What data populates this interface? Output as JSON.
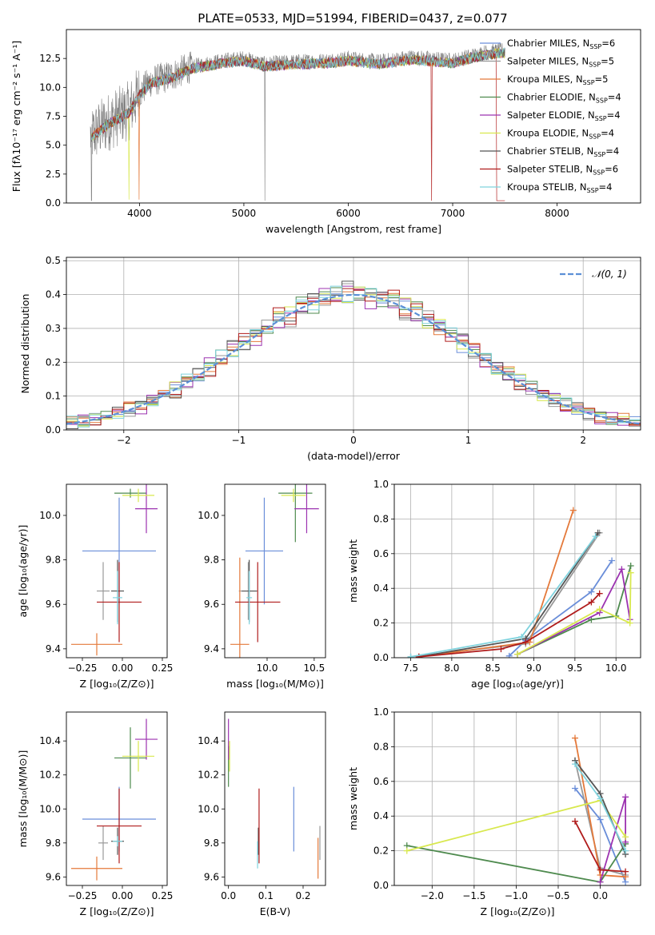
{
  "figure": {
    "title": "PLATE=0533, MJD=51994, FIBERID=0437, z=0.077"
  },
  "model_colors": {
    "Chabrier MILES": "#6a8ed9",
    "Salpeter MILES": "#999999",
    "Kroupa MILES": "#e4793a",
    "Chabrier ELODIE": "#4e8a4e",
    "Salpeter ELODIE": "#9c33b0",
    "Kroupa ELODIE": "#d8e84e",
    "Chabrier STELIB": "#555555",
    "Salpeter STELIB": "#b01c1c",
    "Kroupa STELIB": "#7fd3de"
  },
  "chart_data": [
    {
      "type": "line",
      "id": "spectrum",
      "title": "PLATE=0533, MJD=51994, FIBERID=0437, z=0.077",
      "xlabel": "wavelength [Angstrom, rest frame]",
      "ylabel": "Flux [fλ10⁻¹⁷ erg cm⁻² s⁻¹ A⁻¹]",
      "xlim": [
        3300,
        8800
      ],
      "ylim": [
        0,
        15
      ],
      "xticks": [
        "4000",
        "5000",
        "6000",
        "7000",
        "8000"
      ],
      "yticks": [
        "0.0",
        "2.5",
        "5.0",
        "7.5",
        "10.0",
        "12.5"
      ],
      "grid": false,
      "legend": "upper-right",
      "data_envelope": {
        "x": [
          3530,
          3700,
          3900,
          4000,
          4100,
          4300,
          4500,
          4800,
          5000,
          5200,
          5500,
          5800,
          6000,
          6300,
          6600,
          7000,
          7300,
          7500
        ],
        "y": [
          5.8,
          7.0,
          8.0,
          9.5,
          10.5,
          11.0,
          11.8,
          12.3,
          12.5,
          12.0,
          12.2,
          12.3,
          12.5,
          12.2,
          12.6,
          12.3,
          13.0,
          13.2
        ]
      },
      "series": [
        {
          "name": "Chabrier MILES",
          "nssp": "6"
        },
        {
          "name": "Salpeter MILES",
          "nssp": "5"
        },
        {
          "name": "Kroupa MILES",
          "nssp": "5"
        },
        {
          "name": "Chabrier ELODIE",
          "nssp": "4"
        },
        {
          "name": "Salpeter ELODIE",
          "nssp": "4"
        },
        {
          "name": "Kroupa ELODIE",
          "nssp": "4"
        },
        {
          "name": "Chabrier STELIB",
          "nssp": "4"
        },
        {
          "name": "Salpeter STELIB",
          "nssp": "6"
        },
        {
          "name": "Kroupa STELIB",
          "nssp": "4"
        }
      ]
    },
    {
      "type": "line",
      "id": "residuals",
      "xlabel": "(data-model)/error",
      "ylabel": "Normed distribution",
      "xlim": [
        -2.5,
        2.5
      ],
      "ylim": [
        0,
        0.51
      ],
      "xticks": [
        "−2",
        "−1",
        "0",
        "1",
        "2"
      ],
      "yticks": [
        "0.0",
        "0.1",
        "0.2",
        "0.3",
        "0.4",
        "0.5"
      ],
      "grid": true,
      "legend": "upper-right",
      "legend_label": "𝒩(0, 1)",
      "bin_width": 0.1,
      "series_offsets": [
        [
          0.01,
          -0.01,
          0.02,
          0.0,
          -0.02,
          0.015,
          0.005,
          -0.01,
          0.02,
          0.03
        ],
        [
          -0.01,
          0.02,
          -0.015,
          0.01,
          0.03,
          -0.02,
          0.01,
          0.015,
          -0.005,
          -0.03
        ],
        [
          0.02,
          0.01,
          -0.02,
          -0.015,
          0.01,
          0.025,
          -0.01,
          0.005,
          0.03,
          -0.02
        ],
        [
          0.03,
          -0.02,
          0.01,
          0.025,
          -0.01,
          -0.005,
          0.02,
          -0.015,
          0.01,
          0.005
        ],
        [
          -0.02,
          0.015,
          0.03,
          -0.01,
          0.02,
          0.005,
          -0.03,
          0.02,
          -0.01,
          0.015
        ]
      ]
    },
    {
      "type": "scatter",
      "id": "age-vs-Z",
      "xlabel": "Z [log₁₀(Z/Z⊙)]",
      "ylabel": "age  [log₁₀(age/yr)]",
      "xlim": [
        -0.35,
        0.28
      ],
      "ylim": [
        9.36,
        10.14
      ],
      "xticks": [
        "−0.25",
        "0.00",
        "0.25"
      ],
      "yticks": [
        "9.4",
        "9.6",
        "9.8",
        "10.0"
      ],
      "grid": false,
      "points": [
        {
          "model": "Chabrier MILES",
          "x": -0.02,
          "y": 9.84,
          "xerr": 0.23,
          "yerr": 0.24
        },
        {
          "model": "Salpeter MILES",
          "x": -0.12,
          "y": 9.66,
          "xerr": 0.04,
          "yerr": 0.13
        },
        {
          "model": "Kroupa MILES",
          "x": -0.16,
          "y": 9.42,
          "xerr": 0.16,
          "yerr": 0.05
        },
        {
          "model": "Chabrier ELODIE",
          "x": 0.05,
          "y": 10.1,
          "xerr": 0.1,
          "yerr": 0.02
        },
        {
          "model": "Salpeter ELODIE",
          "x": 0.15,
          "y": 10.03,
          "xerr": 0.07,
          "yerr": 0.11
        },
        {
          "model": "Kroupa ELODIE",
          "x": 0.1,
          "y": 10.09,
          "xerr": 0.1,
          "yerr": 0.03
        },
        {
          "model": "Chabrier STELIB",
          "x": -0.03,
          "y": 9.66,
          "xerr": 0.04,
          "yerr": 0.14
        },
        {
          "model": "Salpeter STELIB",
          "x": -0.02,
          "y": 9.61,
          "xerr": 0.14,
          "yerr": 0.18
        },
        {
          "model": "Kroupa STELIB",
          "x": -0.03,
          "y": 9.63,
          "xerr": 0.03,
          "yerr": 0.12
        }
      ]
    },
    {
      "type": "scatter",
      "id": "age-vs-mass",
      "xlabel": "mass [log₁₀(M/M⊙)]",
      "ylabel": "",
      "xlim": [
        9.55,
        10.62
      ],
      "ylim": [
        9.36,
        10.14
      ],
      "xticks": [
        "10.0",
        "10.5"
      ],
      "yticks": [
        "9.4",
        "9.6",
        "9.8",
        "10.0"
      ],
      "grid": false,
      "points": [
        {
          "model": "Chabrier MILES",
          "x": 9.97,
          "y": 9.84,
          "xerr": 0.2,
          "yerr": 0.24
        },
        {
          "model": "Salpeter MILES",
          "x": 9.8,
          "y": 9.66,
          "xerr": 0.1,
          "yerr": 0.13
        },
        {
          "model": "Kroupa MILES",
          "x": 9.71,
          "y": 9.42,
          "xerr": 0.1,
          "yerr": 0.39
        },
        {
          "model": "Chabrier ELODIE",
          "x": 10.3,
          "y": 10.1,
          "xerr": 0.18,
          "yerr": 0.22
        },
        {
          "model": "Salpeter ELODIE",
          "x": 10.42,
          "y": 10.03,
          "xerr": 0.13,
          "yerr": 0.11
        },
        {
          "model": "Kroupa ELODIE",
          "x": 10.28,
          "y": 10.09,
          "xerr": 0.13,
          "yerr": 0.03
        },
        {
          "model": "Chabrier STELIB",
          "x": 9.81,
          "y": 9.66,
          "xerr": 0.08,
          "yerr": 0.14
        },
        {
          "model": "Salpeter STELIB",
          "x": 9.9,
          "y": 9.61,
          "xerr": 0.24,
          "yerr": 0.18
        },
        {
          "model": "Kroupa STELIB",
          "x": 9.81,
          "y": 9.63,
          "xerr": 0.03,
          "yerr": 0.12
        }
      ]
    },
    {
      "type": "line",
      "id": "massweight-vs-age",
      "xlabel": "age  [log₁₀(age/yr)]",
      "ylabel": "mass weight",
      "xlim": [
        7.3,
        10.3
      ],
      "ylim": [
        0,
        1
      ],
      "xticks": [
        "7.5",
        "8.0",
        "8.5",
        "9.0",
        "9.5",
        "10.0"
      ],
      "yticks": [
        "0.0",
        "0.2",
        "0.4",
        "0.6",
        "0.8",
        "1.0"
      ],
      "grid": true,
      "series": [
        {
          "model": "Chabrier MILES",
          "x": [
            8.7,
            8.9,
            9.7,
            9.95
          ],
          "y": [
            0.01,
            0.1,
            0.38,
            0.56
          ]
        },
        {
          "model": "Salpeter MILES",
          "x": [
            7.5,
            8.9,
            9.8
          ],
          "y": [
            0.005,
            0.08,
            0.72
          ]
        },
        {
          "model": "Kroupa MILES",
          "x": [
            7.6,
            8.95,
            9.48
          ],
          "y": [
            0.005,
            0.09,
            0.85
          ]
        },
        {
          "model": "Chabrier ELODIE",
          "x": [
            8.8,
            9.7,
            10.0,
            10.18
          ],
          "y": [
            0.02,
            0.22,
            0.24,
            0.53
          ]
        },
        {
          "model": "Salpeter ELODIE",
          "x": [
            8.8,
            9.8,
            10.07,
            10.17
          ],
          "y": [
            0.02,
            0.26,
            0.51,
            0.22
          ]
        },
        {
          "model": "Kroupa ELODIE",
          "x": [
            8.8,
            9.8,
            10.17,
            10.18
          ],
          "y": [
            0.02,
            0.28,
            0.2,
            0.49
          ]
        },
        {
          "model": "Chabrier STELIB",
          "x": [
            7.6,
            8.9,
            9.78
          ],
          "y": [
            0.005,
            0.11,
            0.72
          ]
        },
        {
          "model": "Salpeter STELIB",
          "x": [
            7.6,
            8.6,
            8.9,
            9.7,
            9.8
          ],
          "y": [
            0.005,
            0.05,
            0.09,
            0.32,
            0.37
          ]
        },
        {
          "model": "Kroupa STELIB",
          "x": [
            7.5,
            8.85,
            9.75
          ],
          "y": [
            0.005,
            0.12,
            0.7
          ]
        }
      ]
    },
    {
      "type": "scatter",
      "id": "mass-vs-Z",
      "xlabel": "Z [log₁₀(Z/Z⊙)]",
      "ylabel": "mass [log₁₀(M/M⊙)]",
      "xlim": [
        -0.35,
        0.28
      ],
      "ylim": [
        9.55,
        10.57
      ],
      "xticks": [
        "−0.25",
        "0.00",
        "0.25"
      ],
      "yticks": [
        "9.6",
        "9.8",
        "10.0",
        "10.2",
        "10.4"
      ],
      "grid": false,
      "points": [
        {
          "model": "Chabrier MILES",
          "x": -0.02,
          "y": 9.94,
          "xerr": 0.23,
          "yerr": 0.19
        },
        {
          "model": "Salpeter MILES",
          "x": -0.12,
          "y": 9.8,
          "xerr": 0.03,
          "yerr": 0.1
        },
        {
          "model": "Kroupa MILES",
          "x": -0.16,
          "y": 9.65,
          "xerr": 0.16,
          "yerr": 0.07
        },
        {
          "model": "Chabrier ELODIE",
          "x": 0.05,
          "y": 10.3,
          "xerr": 0.1,
          "yerr": 0.18
        },
        {
          "model": "Salpeter ELODIE",
          "x": 0.15,
          "y": 10.41,
          "xerr": 0.07,
          "yerr": 0.12
        },
        {
          "model": "Kroupa ELODIE",
          "x": 0.1,
          "y": 10.31,
          "xerr": 0.1,
          "yerr": 0.09
        },
        {
          "model": "Chabrier STELIB",
          "x": -0.03,
          "y": 9.81,
          "xerr": 0.04,
          "yerr": 0.08
        },
        {
          "model": "Salpeter STELIB",
          "x": -0.02,
          "y": 9.9,
          "xerr": 0.14,
          "yerr": 0.22
        },
        {
          "model": "Kroupa STELIB",
          "x": -0.03,
          "y": 9.81,
          "xerr": 0.03,
          "yerr": 0.03
        }
      ]
    },
    {
      "type": "scatter",
      "id": "mass-vs-EBV",
      "xlabel": "E(B-V)",
      "ylabel": "",
      "xlim": [
        -0.01,
        0.26
      ],
      "ylim": [
        9.55,
        10.57
      ],
      "xticks": [
        "0.0",
        "0.1",
        "0.2"
      ],
      "yticks": [
        "9.6",
        "9.8",
        "10.0",
        "10.2",
        "10.4"
      ],
      "grid": false,
      "points": [
        {
          "model": "Chabrier MILES",
          "x": 0.175,
          "y": 9.94,
          "yerr": 0.19
        },
        {
          "model": "Salpeter MILES",
          "x": 0.245,
          "y": 9.8,
          "yerr": 0.1
        },
        {
          "model": "Kroupa MILES",
          "x": 0.24,
          "y": 9.71,
          "yerr": 0.12
        },
        {
          "model": "Chabrier ELODIE",
          "x": 0.0,
          "y": 10.25,
          "yerr": 0.12
        },
        {
          "model": "Salpeter ELODIE",
          "x": 0.0,
          "y": 10.41,
          "yerr": 0.12
        },
        {
          "model": "Kroupa ELODIE",
          "x": 0.003,
          "y": 10.31,
          "yerr": 0.09
        },
        {
          "model": "Chabrier STELIB",
          "x": 0.08,
          "y": 9.81,
          "yerr": 0.08
        },
        {
          "model": "Salpeter STELIB",
          "x": 0.082,
          "y": 9.9,
          "yerr": 0.22
        },
        {
          "model": "Kroupa STELIB",
          "x": 0.078,
          "y": 9.73,
          "yerr": 0.08
        }
      ]
    },
    {
      "type": "line",
      "id": "massweight-vs-Z",
      "xlabel": "Z [log₁₀(Z/Z⊙)]",
      "ylabel": "mass weight",
      "xlim": [
        -2.45,
        0.48
      ],
      "ylim": [
        0,
        1
      ],
      "xticks": [
        "−2.0",
        "−1.5",
        "−1.0",
        "−0.5",
        "0.0"
      ],
      "yticks": [
        "0.0",
        "0.2",
        "0.4",
        "0.6",
        "0.8",
        "1.0"
      ],
      "grid": true,
      "series": [
        {
          "model": "Chabrier MILES",
          "x": [
            -0.3,
            0.0,
            0.3
          ],
          "y": [
            0.56,
            0.38,
            0.02
          ]
        },
        {
          "model": "Salpeter MILES",
          "x": [
            -0.3,
            0.0,
            0.3
          ],
          "y": [
            0.72,
            0.1,
            0.06
          ]
        },
        {
          "model": "Kroupa MILES",
          "x": [
            -0.3,
            0.0,
            0.3
          ],
          "y": [
            0.85,
            0.06,
            0.05
          ]
        },
        {
          "model": "Chabrier ELODIE",
          "x": [
            -2.3,
            0.0,
            0.3
          ],
          "y": [
            0.23,
            0.02,
            0.24
          ]
        },
        {
          "model": "Salpeter ELODIE",
          "x": [
            -0.0,
            0.3,
            0.3
          ],
          "y": [
            0.02,
            0.51,
            0.25
          ]
        },
        {
          "model": "Kroupa ELODIE",
          "x": [
            -2.3,
            0.0,
            0.3
          ],
          "y": [
            0.2,
            0.49,
            0.28
          ]
        },
        {
          "model": "Chabrier STELIB",
          "x": [
            -0.3,
            0.0,
            0.3
          ],
          "y": [
            0.72,
            0.53,
            0.18
          ]
        },
        {
          "model": "Salpeter STELIB",
          "x": [
            -0.3,
            0.0,
            0.3
          ],
          "y": [
            0.37,
            0.09,
            0.08
          ]
        },
        {
          "model": "Kroupa STELIB",
          "x": [
            -0.3,
            0.0,
            0.3
          ],
          "y": [
            0.7,
            0.5,
            0.2
          ]
        }
      ]
    }
  ]
}
